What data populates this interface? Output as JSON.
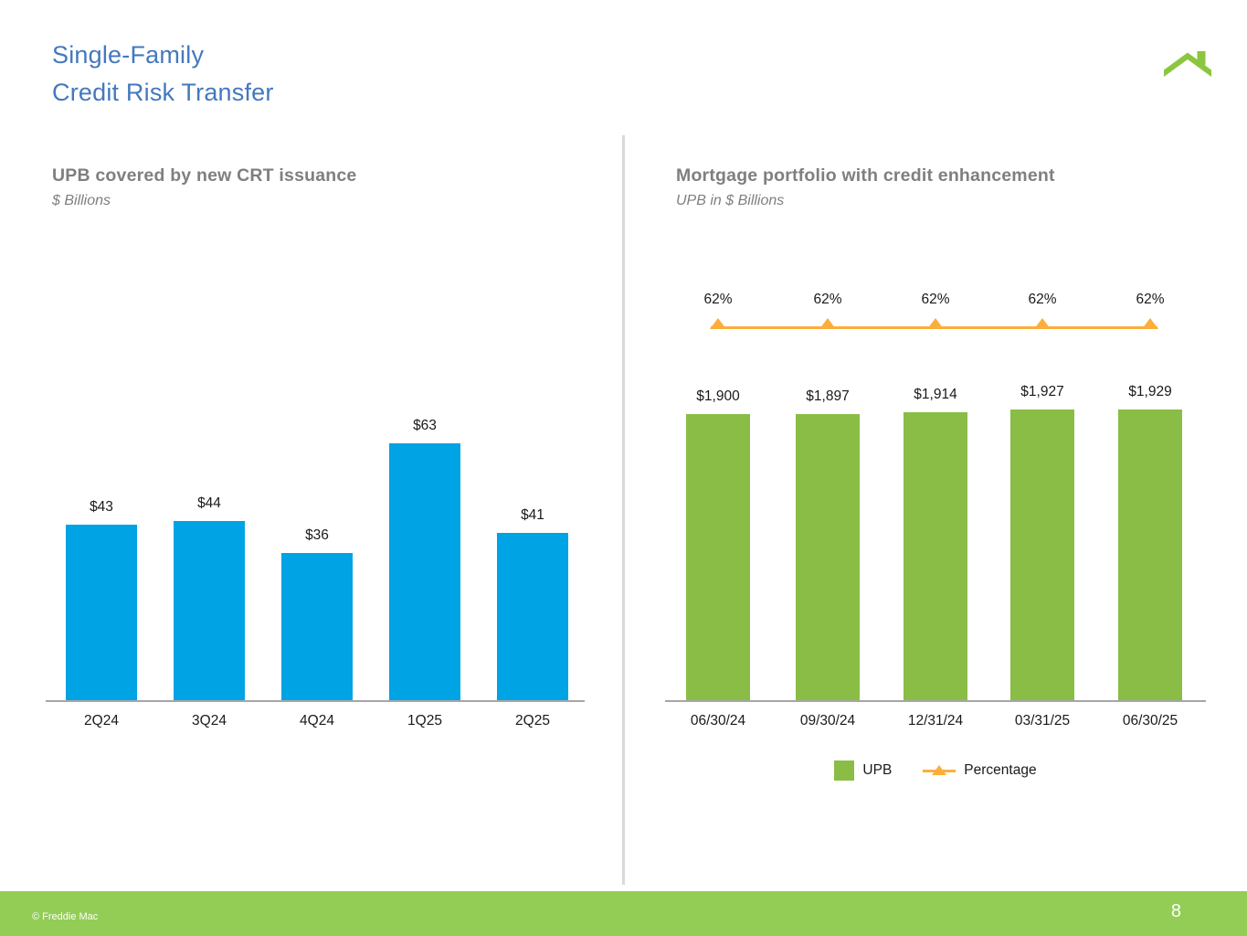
{
  "header": {
    "title_line1": "Single-Family",
    "title_line2": "Credit Risk Transfer"
  },
  "left_panel": {
    "title": "UPB covered by new CRT issuance",
    "subtitle": "$ Billions"
  },
  "right_panel": {
    "title": "Mortgage portfolio with credit enhancement",
    "subtitle": "UPB in $ Billions"
  },
  "chart_data": [
    {
      "type": "bar",
      "title": "UPB covered by new CRT issuance",
      "ylabel": "$ Billions",
      "categories": [
        "2Q24",
        "3Q24",
        "4Q24",
        "1Q25",
        "2Q25"
      ],
      "values": [
        43,
        44,
        36,
        63,
        41
      ],
      "data_labels": [
        "$43",
        "$44",
        "$36",
        "$63",
        "$41"
      ],
      "ylim": [
        0,
        70
      ],
      "grid": false,
      "legend_position": "none",
      "bar_color": "#00A3E4"
    },
    {
      "type": "bar",
      "title": "Mortgage portfolio with credit enhancement",
      "ylabel": "UPB in $ Billions",
      "categories": [
        "06/30/24",
        "09/30/24",
        "12/31/24",
        "03/31/25",
        "06/30/25"
      ],
      "series": [
        {
          "name": "UPB",
          "type": "bar",
          "values": [
            1900,
            1897,
            1914,
            1927,
            1929
          ],
          "data_labels": [
            "$1,900",
            "$1,897",
            "$1,914",
            "$1,927",
            "$1,929"
          ],
          "color": "#8ABD45"
        },
        {
          "name": "Percentage",
          "type": "line",
          "marker": "triangle-up",
          "values": [
            62,
            62,
            62,
            62,
            62
          ],
          "data_labels": [
            "62%",
            "62%",
            "62%",
            "62%",
            "62%"
          ],
          "color": "#FBAE3C"
        }
      ],
      "grid": false,
      "legend_position": "bottom"
    }
  ],
  "legend": {
    "upb_label": "UPB",
    "percentage_label": "Percentage"
  },
  "footer": {
    "copyright": "© Freddie Mac",
    "page_number": "8"
  },
  "colors": {
    "title_blue": "#4478BE",
    "heading_gray": "#7F7F7F",
    "bar_blue": "#00A3E4",
    "bar_green": "#8ABD45",
    "line_orange": "#FBAE3C",
    "footer_green": "#93CD55",
    "logo_green": "#8CC63F",
    "axis_gray": "#A6A6A6",
    "divider_gray": "#D9D9D9",
    "label_black": "#1A1A1A"
  }
}
